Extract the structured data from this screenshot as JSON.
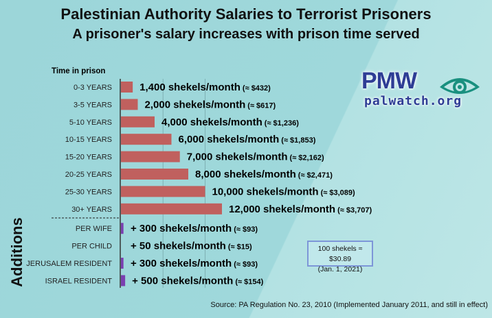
{
  "chart_data": {
    "type": "bar",
    "title": "Palestinian Authority Salaries to Terrorist Prisoners",
    "subtitle": "A prisoner's salary increases with prison time served",
    "ylabel": "Time in prison",
    "additions_label": "Additions",
    "unit": "shekels/month",
    "categories": [
      "0-3 YEARS",
      "3-5 YEARS",
      "5-10 YEARS",
      "10-15 YEARS",
      "15-20 YEARS",
      "20-25 YEARS",
      "25-30 YEARS",
      "30+ YEARS"
    ],
    "values": [
      1400,
      2000,
      4000,
      6000,
      7000,
      8000,
      10000,
      12000
    ],
    "labels": [
      "1,400 shekels/month",
      "2,000 shekels/month",
      "4,000 shekels/month",
      "6,000 shekels/month",
      "7,000 shekels/month",
      "8,000 shekels/month",
      "10,000 shekels/month",
      "12,000 shekels/month"
    ],
    "usd_labels": [
      "(≈ $432)",
      "(≈ $617)",
      "(≈ $1,236)",
      "(≈ $1,853)",
      "(≈ $2,162)",
      "(≈ $2,471)",
      "(≈ $3,089)",
      "(≈ $3,707)"
    ],
    "addition_categories": [
      "PER WIFE",
      "PER CHILD",
      "JERUSALEM RESIDENT",
      "ISRAEL RESIDENT"
    ],
    "addition_values": [
      300,
      50,
      300,
      500
    ],
    "addition_labels": [
      "+ 300 shekels/month",
      "+ 50 shekels/month",
      "+ 300 shekels/month",
      "+ 500 shekels/month"
    ],
    "addition_usd_labels": [
      "(≈ $93)",
      "(≈ $15)",
      "(≈ $93)",
      "(≈ $154)"
    ],
    "xlim": [
      0,
      12000
    ],
    "grid": true,
    "colors": {
      "bar": "#c0605e",
      "addition": "#7a3fb0"
    }
  },
  "logo": {
    "main": "PMW",
    "site": "palwatch.org"
  },
  "note": {
    "line1": "100 shekels ≈ $30.89",
    "line2": "(Jan. 1, 2021)"
  },
  "source": "Source: PA Regulation No. 23, 2010 (Implemented January 2011, and still in effect)"
}
